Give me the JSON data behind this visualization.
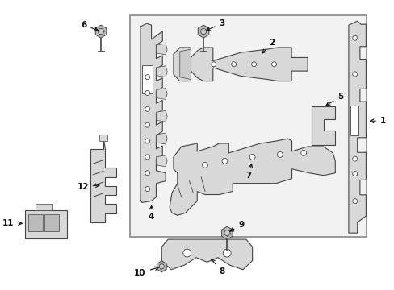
{
  "bg": "#ffffff",
  "fg": "#222222",
  "part_fill": "#d8d8d8",
  "part_edge": "#444444",
  "box_fill": "#f0f0f0",
  "box_edge": "#555555",
  "fig_w": 4.89,
  "fig_h": 3.6,
  "dpi": 100
}
